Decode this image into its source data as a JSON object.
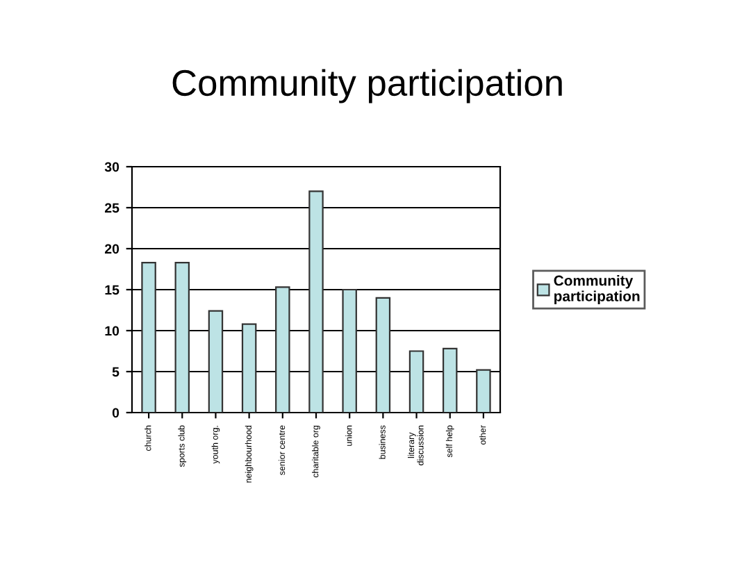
{
  "chart_data": {
    "type": "bar",
    "title": "Community participation",
    "categories": [
      "church",
      "sports club",
      "youth org.",
      "neighbourhood",
      "senior centre",
      "charitable org",
      "union",
      "business",
      "literary\ndiscussion",
      "self help",
      "other"
    ],
    "series": [
      {
        "name": "Community\nparticipation",
        "color": "#bde3e5",
        "values": [
          18.3,
          18.3,
          12.4,
          10.8,
          15.3,
          27,
          15,
          14,
          7.5,
          7.8,
          5.2
        ]
      }
    ],
    "ylim": [
      0,
      30
    ],
    "yticks": [
      0,
      5,
      10,
      15,
      20,
      25,
      30
    ],
    "grid": "y",
    "legend": "right"
  }
}
